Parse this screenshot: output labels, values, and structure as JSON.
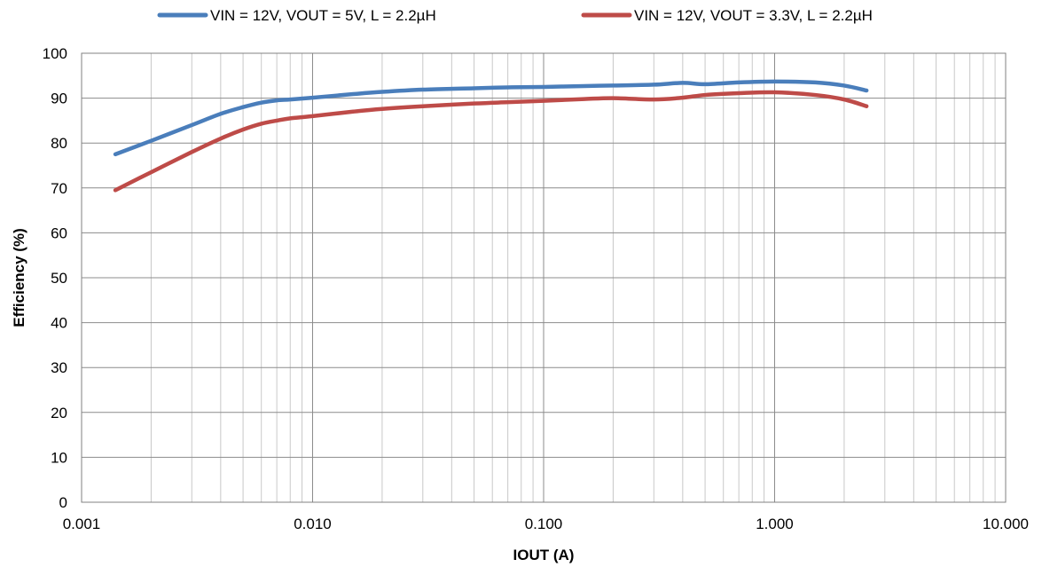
{
  "chart_data": {
    "type": "line",
    "title": "",
    "xlabel": "IOUT (A)",
    "ylabel": "Efficiency (%)",
    "x_scale": "log",
    "xlim": [
      0.001,
      10
    ],
    "ylim": [
      0,
      100
    ],
    "x_ticks": [
      "0.001",
      "0.010",
      "0.100",
      "1.000",
      "10.000"
    ],
    "y_ticks": [
      "0",
      "10",
      "20",
      "30",
      "40",
      "50",
      "60",
      "70",
      "80",
      "90",
      "100"
    ],
    "grid": true,
    "legend_position": "top",
    "series": [
      {
        "name": "VIN = 12V, VOUT = 5V, L = 2.2µH",
        "color": "#4a7ebb",
        "x": [
          0.0014,
          0.002,
          0.003,
          0.004,
          0.005,
          0.006,
          0.007,
          0.008,
          0.01,
          0.015,
          0.02,
          0.03,
          0.05,
          0.07,
          0.1,
          0.15,
          0.2,
          0.3,
          0.4,
          0.5,
          0.7,
          1.0,
          1.5,
          2.0,
          2.5
        ],
        "y": [
          77.5,
          80.5,
          84,
          86.5,
          88,
          89,
          89.5,
          89.7,
          90.1,
          90.9,
          91.4,
          91.9,
          92.2,
          92.4,
          92.5,
          92.7,
          92.8,
          93,
          93.4,
          93.1,
          93.5,
          93.7,
          93.5,
          92.8,
          91.7
        ]
      },
      {
        "name": "VIN = 12V, VOUT = 3.3V, L = 2.2µH",
        "color": "#be4b48",
        "x": [
          0.0014,
          0.002,
          0.003,
          0.004,
          0.005,
          0.006,
          0.007,
          0.008,
          0.01,
          0.015,
          0.02,
          0.03,
          0.05,
          0.07,
          0.1,
          0.15,
          0.2,
          0.3,
          0.4,
          0.5,
          0.7,
          1.0,
          1.5,
          2.0,
          2.5
        ],
        "y": [
          69.5,
          73.5,
          78,
          81,
          83,
          84.3,
          85,
          85.5,
          86,
          87,
          87.6,
          88.2,
          88.8,
          89.1,
          89.4,
          89.8,
          90,
          89.7,
          90.1,
          90.7,
          91.1,
          91.3,
          90.7,
          89.7,
          88.2
        ]
      }
    ]
  }
}
